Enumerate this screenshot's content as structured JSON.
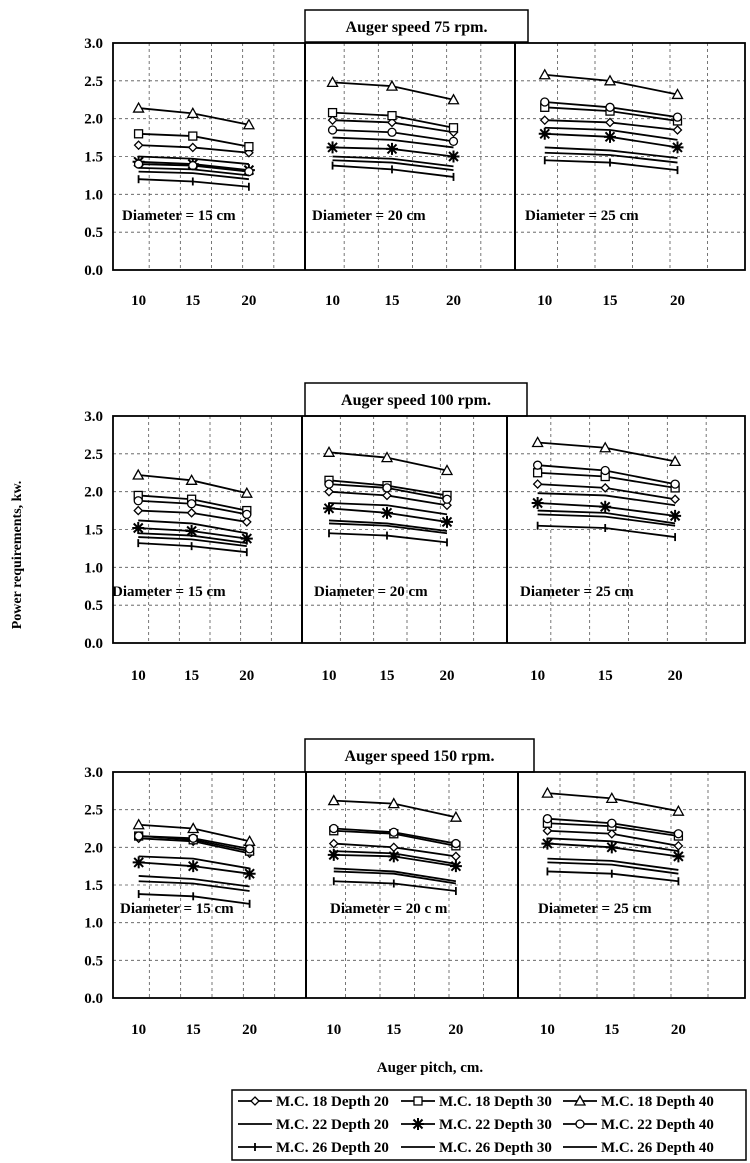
{
  "chart_data": {
    "type": "line",
    "ylabel": "Power requirements, kw.",
    "xlabel": "Auger pitch, cm.",
    "ylim": [
      0,
      3
    ],
    "y_ticks": [
      "0.0",
      "0.5",
      "1.0",
      "1.5",
      "2.0",
      "2.5",
      "3.0"
    ],
    "x_ticks": [
      "10",
      "15",
      "20"
    ],
    "grid": true,
    "legend_position": "bottom",
    "legend": [
      {
        "label": "M.C. 18 Depth 20",
        "marker": "diamond"
      },
      {
        "label": "M.C. 18 Depth 30",
        "marker": "square"
      },
      {
        "label": "M.C. 18 Depth 40",
        "marker": "triangle"
      },
      {
        "label": "M.C. 22 Depth 20",
        "marker": "none"
      },
      {
        "label": "M.C. 22 Depth 30",
        "marker": "star"
      },
      {
        "label": "M.C. 22 Depth 40",
        "marker": "circle"
      },
      {
        "label": "M.C. 26 Depth 20",
        "marker": "plus"
      },
      {
        "label": "M.C. 26 Depth 30",
        "marker": "none"
      },
      {
        "label": "M.C. 26 Depth 40",
        "marker": "none"
      }
    ],
    "charts": [
      {
        "title": "Auger speed 75 rpm.",
        "panels": [
          {
            "label": "Diameter = 15 cm",
            "x": [
              10,
              15,
              20
            ],
            "series": [
              [
                1.65,
                1.62,
                1.55
              ],
              [
                1.8,
                1.77,
                1.63
              ],
              [
                2.14,
                2.07,
                1.92
              ],
              [
                1.5,
                1.47,
                1.4
              ],
              [
                1.43,
                1.4,
                1.32
              ],
              [
                1.4,
                1.38,
                1.3
              ],
              [
                1.2,
                1.17,
                1.1
              ],
              [
                1.35,
                1.33,
                1.25
              ],
              [
                1.3,
                1.28,
                1.2
              ]
            ]
          },
          {
            "label": "Diameter = 20 cm",
            "x": [
              10,
              15,
              20
            ],
            "series": [
              [
                1.98,
                1.95,
                1.82
              ],
              [
                2.08,
                2.04,
                1.88
              ],
              [
                2.48,
                2.43,
                2.25
              ],
              [
                1.75,
                1.72,
                1.62
              ],
              [
                1.62,
                1.6,
                1.5
              ],
              [
                1.85,
                1.82,
                1.7
              ],
              [
                1.38,
                1.33,
                1.23
              ],
              [
                1.5,
                1.47,
                1.37
              ],
              [
                1.45,
                1.42,
                1.32
              ]
            ]
          },
          {
            "label": "Diameter = 25  cm",
            "x": [
              10,
              15,
              20
            ],
            "series": [
              [
                1.98,
                1.95,
                1.85
              ],
              [
                2.15,
                2.1,
                1.97
              ],
              [
                2.58,
                2.5,
                2.32
              ],
              [
                1.88,
                1.85,
                1.72
              ],
              [
                1.8,
                1.76,
                1.62
              ],
              [
                2.22,
                2.15,
                2.02
              ],
              [
                1.45,
                1.42,
                1.32
              ],
              [
                1.62,
                1.58,
                1.48
              ],
              [
                1.55,
                1.52,
                1.42
              ]
            ]
          }
        ]
      },
      {
        "title": "Auger speed 100 rpm.",
        "panels": [
          {
            "label": "Diameter = 15 cm",
            "x": [
              10,
              15,
              20
            ],
            "series": [
              [
                1.75,
                1.72,
                1.6
              ],
              [
                1.95,
                1.9,
                1.75
              ],
              [
                2.22,
                2.15,
                1.98
              ],
              [
                1.62,
                1.58,
                1.45
              ],
              [
                1.52,
                1.48,
                1.38
              ],
              [
                1.88,
                1.84,
                1.7
              ],
              [
                1.32,
                1.28,
                1.2
              ],
              [
                1.45,
                1.42,
                1.32
              ],
              [
                1.4,
                1.37,
                1.28
              ]
            ]
          },
          {
            "label": "Diameter = 20  cm",
            "x": [
              10,
              15,
              20
            ],
            "series": [
              [
                2.0,
                1.95,
                1.82
              ],
              [
                2.15,
                2.08,
                1.95
              ],
              [
                2.52,
                2.45,
                2.28
              ],
              [
                1.85,
                1.82,
                1.7
              ],
              [
                1.78,
                1.72,
                1.6
              ],
              [
                2.1,
                2.05,
                1.9
              ],
              [
                1.45,
                1.42,
                1.33
              ],
              [
                1.62,
                1.58,
                1.48
              ],
              [
                1.58,
                1.55,
                1.45
              ]
            ]
          },
          {
            "label": "Diameter = 25  cm",
            "x": [
              10,
              15,
              20
            ],
            "series": [
              [
                2.1,
                2.05,
                1.9
              ],
              [
                2.25,
                2.2,
                2.05
              ],
              [
                2.65,
                2.58,
                2.4
              ],
              [
                1.98,
                1.95,
                1.82
              ],
              [
                1.85,
                1.8,
                1.68
              ],
              [
                2.35,
                2.28,
                2.1
              ],
              [
                1.55,
                1.52,
                1.4
              ],
              [
                1.75,
                1.72,
                1.58
              ],
              [
                1.7,
                1.67,
                1.55
              ]
            ]
          }
        ]
      },
      {
        "title": "Auger speed 150 rpm.",
        "panels": [
          {
            "label": "Diameter = 15 cm",
            "x": [
              10,
              15,
              20
            ],
            "series": [
              [
                2.12,
                2.08,
                1.92
              ],
              [
                2.15,
                2.1,
                1.95
              ],
              [
                2.3,
                2.25,
                2.08
              ],
              [
                1.88,
                1.85,
                1.72
              ],
              [
                1.8,
                1.75,
                1.65
              ],
              [
                2.15,
                2.12,
                1.98
              ],
              [
                1.38,
                1.35,
                1.25
              ],
              [
                1.62,
                1.58,
                1.48
              ],
              [
                1.55,
                1.52,
                1.42
              ]
            ]
          },
          {
            "label": "Diameter = 20 c m",
            "x": [
              10,
              15,
              20
            ],
            "series": [
              [
                2.05,
                2.0,
                1.88
              ],
              [
                2.22,
                2.18,
                2.02
              ],
              [
                2.62,
                2.58,
                2.4
              ],
              [
                1.95,
                1.92,
                1.78
              ],
              [
                1.9,
                1.88,
                1.75
              ],
              [
                2.25,
                2.2,
                2.05
              ],
              [
                1.55,
                1.52,
                1.42
              ],
              [
                1.72,
                1.68,
                1.55
              ],
              [
                1.68,
                1.65,
                1.52
              ]
            ]
          },
          {
            "label": "Diameter = 25  cm",
            "x": [
              10,
              15,
              20
            ],
            "series": [
              [
                2.22,
                2.18,
                2.02
              ],
              [
                2.32,
                2.28,
                2.15
              ],
              [
                2.72,
                2.65,
                2.48
              ],
              [
                2.12,
                2.08,
                1.95
              ],
              [
                2.05,
                2.0,
                1.88
              ],
              [
                2.38,
                2.32,
                2.18
              ],
              [
                1.68,
                1.65,
                1.55
              ],
              [
                1.85,
                1.82,
                1.7
              ],
              [
                1.8,
                1.77,
                1.65
              ]
            ]
          }
        ]
      }
    ]
  }
}
